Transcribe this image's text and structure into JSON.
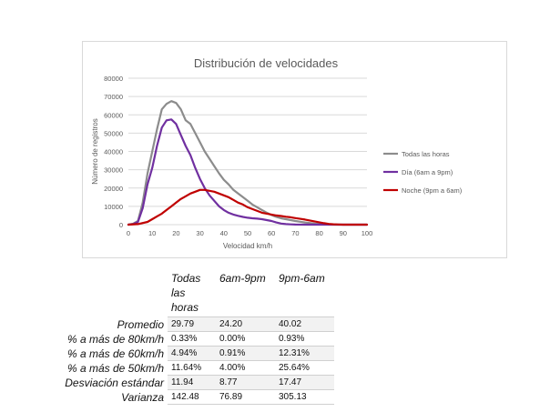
{
  "chart_data": {
    "type": "line",
    "title": "Distribución de velocidades",
    "xlabel": "Velocidad km/h",
    "ylabel": "Número de registros",
    "xlim": [
      0,
      100
    ],
    "ylim": [
      0,
      80000
    ],
    "xticks": [
      0,
      10,
      20,
      30,
      40,
      50,
      60,
      70,
      80,
      90,
      100
    ],
    "yticks": [
      0,
      10000,
      20000,
      30000,
      40000,
      50000,
      60000,
      70000,
      80000
    ],
    "grid": true,
    "legend_position": "right",
    "series": [
      {
        "name": "Todas las horas",
        "color": "#8c8c8c",
        "x": [
          0,
          2,
          4,
          6,
          8,
          10,
          12,
          14,
          16,
          18,
          20,
          22,
          24,
          26,
          28,
          30,
          32,
          34,
          36,
          38,
          40,
          42,
          44,
          46,
          48,
          50,
          52,
          54,
          56,
          58,
          60,
          62,
          64,
          66,
          68,
          70,
          72,
          74,
          76,
          78,
          80,
          82,
          84,
          86,
          88,
          90,
          95,
          100
        ],
        "y": [
          0,
          500,
          2000,
          12000,
          28000,
          40000,
          52000,
          63000,
          66000,
          67500,
          66500,
          63000,
          57000,
          55000,
          50000,
          45000,
          40000,
          36000,
          32000,
          28000,
          24500,
          22000,
          19000,
          17000,
          15000,
          13000,
          11000,
          9500,
          8000,
          6500,
          5200,
          4200,
          3500,
          3000,
          2500,
          2000,
          1600,
          1200,
          900,
          600,
          400,
          200,
          100,
          50,
          20,
          0,
          0,
          0
        ]
      },
      {
        "name": "Día (6am a 9pm)",
        "color": "#7030a0",
        "x": [
          0,
          2,
          4,
          6,
          8,
          10,
          12,
          14,
          16,
          18,
          20,
          22,
          24,
          26,
          28,
          30,
          32,
          34,
          36,
          38,
          40,
          42,
          44,
          46,
          48,
          50,
          52,
          54,
          56,
          58,
          60,
          62,
          64,
          66,
          68,
          70,
          75,
          80,
          100
        ],
        "y": [
          0,
          300,
          1500,
          9000,
          22000,
          31000,
          43000,
          53000,
          57000,
          57500,
          55000,
          49000,
          43000,
          38000,
          31000,
          25000,
          20000,
          16000,
          13000,
          10000,
          8000,
          6500,
          5500,
          4800,
          4200,
          3800,
          3500,
          3300,
          3000,
          2500,
          2000,
          1200,
          600,
          300,
          150,
          50,
          0,
          0,
          0
        ]
      },
      {
        "name": "Noche (9pm a 6am)",
        "color": "#c00000",
        "x": [
          0,
          4,
          8,
          10,
          12,
          14,
          16,
          18,
          20,
          22,
          24,
          26,
          28,
          30,
          32,
          34,
          36,
          38,
          40,
          42,
          44,
          46,
          48,
          50,
          52,
          54,
          56,
          58,
          60,
          62,
          64,
          66,
          68,
          70,
          72,
          74,
          76,
          78,
          80,
          82,
          84,
          86,
          88,
          90,
          100
        ],
        "y": [
          0,
          300,
          1500,
          3000,
          4500,
          6000,
          8000,
          10000,
          12000,
          14000,
          15500,
          17000,
          18000,
          19000,
          19000,
          18500,
          18000,
          17000,
          16000,
          15000,
          13500,
          12000,
          11000,
          9500,
          8500,
          7500,
          6500,
          6000,
          5500,
          5000,
          4700,
          4300,
          4000,
          3600,
          3200,
          2800,
          2300,
          1800,
          1300,
          800,
          400,
          200,
          100,
          0,
          0
        ]
      }
    ]
  },
  "table": {
    "columns": [
      "Todas las horas",
      "6am-9pm",
      "9pm-6am"
    ],
    "rows": [
      {
        "label": "Promedio",
        "values": [
          "29.79",
          "24.20",
          "40.02"
        ]
      },
      {
        "label": "% a más de 80km/h",
        "values": [
          "0.33%",
          "0.00%",
          "0.93%"
        ]
      },
      {
        "label": "% a más de 60km/h",
        "values": [
          "4.94%",
          "0.91%",
          "12.31%"
        ]
      },
      {
        "label": "% a más de 50km/h",
        "values": [
          "11.64%",
          "4.00%",
          "25.64%"
        ]
      },
      {
        "label": "Desviación estándar",
        "values": [
          "11.94",
          "8.77",
          "17.47"
        ]
      },
      {
        "label": "Varianza",
        "values": [
          "142.48",
          "76.89",
          "305.13"
        ]
      }
    ]
  }
}
